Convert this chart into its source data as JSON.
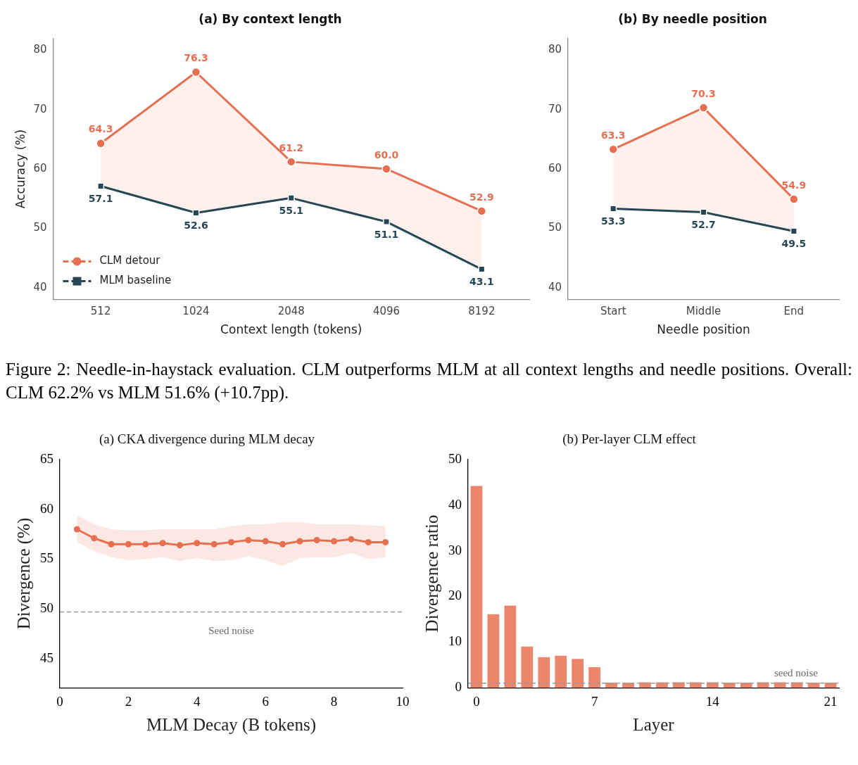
{
  "chart_data": [
    {
      "type": "line",
      "title": "(a) By context length",
      "xlabel": "Context length (tokens)",
      "ylabel": "Accuracy (%)",
      "categories": [
        "512",
        "1024",
        "2048",
        "4096",
        "8192"
      ],
      "ylim": [
        38,
        82
      ],
      "yticks": [
        40,
        50,
        60,
        70,
        80
      ],
      "grid": false,
      "legend": "bottom left",
      "annotations": [
        "Figure 2: Needle-in-haystack evaluation. CLM outperforms MLM at all context lengths and needle positions. Overall: CLM 62.2% vs MLM 51.6% (+10.7pp)."
      ],
      "series": [
        {
          "name": "CLM detour",
          "color": "#e76f51",
          "marker": "circle",
          "values": [
            64.3,
            76.3,
            61.2,
            60.0,
            52.9
          ],
          "value_labels": [
            "64.3",
            "76.3",
            "61.2",
            "60.0",
            "52.9"
          ],
          "lower": [
            57.1,
            52.6,
            55.1,
            51.1,
            43.1
          ],
          "upper": [
            64.3,
            76.3,
            61.2,
            60.0,
            52.9
          ]
        },
        {
          "name": "MLM baseline",
          "color": "#264653",
          "marker": "square",
          "values": [
            57.1,
            52.6,
            55.1,
            51.1,
            43.1
          ],
          "value_labels": [
            "57.1",
            "52.6",
            "55.1",
            "51.1",
            "43.1"
          ]
        }
      ]
    },
    {
      "type": "line",
      "title": "(b) By needle position",
      "xlabel": "Needle position",
      "categories": [
        "Start",
        "Middle",
        "End"
      ],
      "ylim": [
        38,
        82
      ],
      "yticks": [
        40,
        50,
        60,
        70,
        80
      ],
      "grid": false,
      "series": [
        {
          "color": "#e76f51",
          "marker": "circle",
          "values": [
            63.3,
            70.3,
            54.9
          ],
          "value_labels": [
            "63.3",
            "70.3",
            "54.9"
          ],
          "lower": [
            53.3,
            52.7,
            49.5
          ],
          "upper": [
            63.3,
            70.3,
            54.9
          ]
        },
        {
          "color": "#264653",
          "marker": "square",
          "values": [
            53.3,
            52.7,
            49.5
          ],
          "value_labels": [
            "53.3",
            "52.7",
            "49.5"
          ]
        }
      ]
    },
    {
      "type": "line",
      "title": "(a) CKA divergence during MLM decay",
      "xlabel": "MLM Decay (B tokens)",
      "ylabel": "Divergence (%)",
      "xlim": [
        0,
        10
      ],
      "xticks": [
        0,
        2,
        4,
        6,
        8,
        10
      ],
      "ylim": [
        42.1,
        65
      ],
      "yticks": [
        45,
        50,
        55,
        60,
        65
      ],
      "grid": false,
      "marker": "circle",
      "ref_lines": [
        {
          "axis": "y",
          "value": 49.7,
          "label": "Seed noise",
          "color": "#999999",
          "line_style": "dashed"
        }
      ],
      "series": [
        {
          "color": "#e76f51",
          "x": [
            0.5,
            1,
            1.5,
            2,
            2.5,
            3,
            3.5,
            4,
            4.5,
            5,
            5.5,
            6,
            6.5,
            7,
            7.5,
            8,
            8.5,
            9,
            9.5
          ],
          "values": [
            58.0,
            57.1,
            56.5,
            56.5,
            56.5,
            56.6,
            56.4,
            56.6,
            56.5,
            56.7,
            56.9,
            56.8,
            56.5,
            56.8,
            56.9,
            56.8,
            57.0,
            56.7,
            56.7
          ],
          "lower": [
            56.7,
            55.8,
            55.2,
            54.9,
            55.0,
            55.2,
            54.8,
            55.1,
            54.8,
            54.9,
            55.3,
            54.9,
            54.3,
            55.1,
            55.2,
            55.2,
            55.6,
            55.0,
            55.2
          ],
          "upper": [
            59.4,
            58.5,
            58.0,
            57.9,
            57.9,
            58.0,
            58.0,
            58.0,
            58.0,
            58.3,
            58.5,
            58.5,
            58.7,
            58.7,
            58.5,
            58.5,
            58.5,
            58.4,
            58.3
          ]
        }
      ]
    },
    {
      "type": "bar",
      "title": "(b) Per-layer CLM effect",
      "xlabel": "Layer",
      "ylabel": "Divergence ratio",
      "categories": [
        "0",
        null,
        null,
        null,
        null,
        null,
        null,
        "7",
        null,
        null,
        null,
        null,
        null,
        null,
        "14",
        null,
        null,
        null,
        null,
        null,
        null,
        "21"
      ],
      "ylim": [
        0,
        50
      ],
      "yticks": [
        0,
        10,
        20,
        30,
        40,
        50
      ],
      "grid": false,
      "color": "#eb866b",
      "values": [
        44.2,
        16.1,
        18.0,
        9.0,
        6.7,
        7.0,
        6.3,
        4.5,
        1.1,
        1.1,
        1.2,
        1.2,
        1.2,
        1.2,
        1.2,
        1.1,
        1.1,
        1.2,
        1.2,
        1.2,
        1.1,
        1.1
      ],
      "ref_lines": [
        {
          "axis": "y",
          "value": 1.0,
          "label": "seed noise",
          "color": "#999999",
          "line_style": "dashed"
        }
      ]
    }
  ]
}
